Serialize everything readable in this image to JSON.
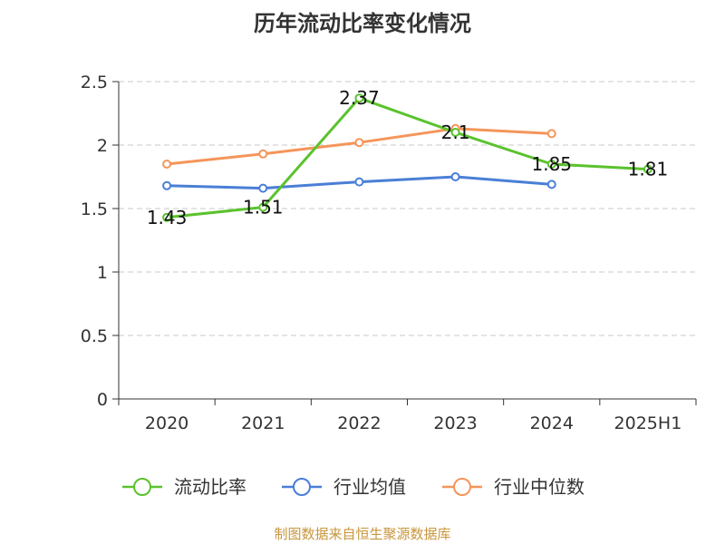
{
  "chart_data": {
    "type": "line",
    "title": "历年流动比率变化情况",
    "categories": [
      "2020",
      "2021",
      "2022",
      "2023",
      "2024",
      "2025H1"
    ],
    "ylim": [
      0,
      2.5
    ],
    "yticks": [
      "0",
      "0.5",
      "1",
      "1.5",
      "2",
      "2.5"
    ],
    "grid": true,
    "legend_position": "bottom",
    "series": [
      {
        "name": "流动比率",
        "color": "#5bc22d",
        "values": [
          1.43,
          1.51,
          2.37,
          2.1,
          1.85,
          1.81
        ],
        "labels": [
          "1.43",
          "1.51",
          "2.37",
          "2.1",
          "1.85",
          "1.81"
        ]
      },
      {
        "name": "行业均值",
        "color": "#4a7fd6",
        "values": [
          1.68,
          1.66,
          1.71,
          1.75,
          1.69,
          null
        ]
      },
      {
        "name": "行业中位数",
        "color": "#f5955a",
        "values": [
          1.85,
          1.93,
          2.02,
          2.13,
          2.09,
          null
        ]
      }
    ]
  },
  "source_text": "制图数据来自恒生聚源数据库"
}
